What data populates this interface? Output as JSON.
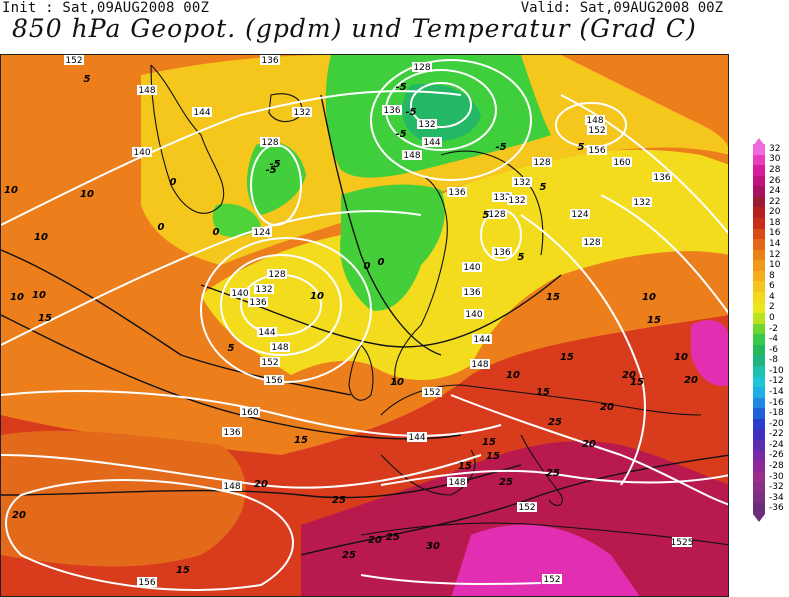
{
  "header": {
    "init": "Init : Sat,09AUG2008 00Z",
    "valid": "Valid: Sat,09AUG2008 00Z",
    "title": "850 hPa Geopot. (gpdm) und Temperatur (Grad C)"
  },
  "colors": {
    "very_hot": "#c2185b",
    "hot": "#d93b1f",
    "warm": "#ef7a1a",
    "mild": "#f6a321",
    "cool": "#f2e21e",
    "cold": "#3ccf3c",
    "land_line": "#111111",
    "geopotential_line": "#ffffff"
  },
  "legend": {
    "labels": [
      "32",
      "30",
      "28",
      "26",
      "24",
      "22",
      "20",
      "18",
      "16",
      "14",
      "12",
      "10",
      "8",
      "6",
      "4",
      "2",
      "0",
      "-2",
      "-4",
      "-6",
      "-8",
      "-10",
      "-12",
      "-14",
      "-16",
      "-18",
      "-20",
      "-22",
      "-24",
      "-26",
      "-28",
      "-30",
      "-32",
      "-34",
      "-36"
    ],
    "colors": [
      "#f06adf",
      "#e63ebd",
      "#d61b9c",
      "#c2127d",
      "#a8115f",
      "#9b1b30",
      "#b5211f",
      "#c92d1a",
      "#d94a17",
      "#e26718",
      "#ea8119",
      "#f0981b",
      "#f5ad1c",
      "#f7c41d",
      "#f4d81e",
      "#e9e81f",
      "#b9e21f",
      "#6fd530",
      "#38c94a",
      "#25b95b",
      "#1fb37f",
      "#1ec1ad",
      "#1ec5d7",
      "#20aee6",
      "#2088e2",
      "#2060d8",
      "#2a3ccc",
      "#3f2fbf",
      "#5c2db0",
      "#7a28a6",
      "#8f2896",
      "#9b2d8b",
      "#8a2f86",
      "#7a2f80",
      "#6b2c7a"
    ]
  },
  "geopotential_labels": [
    "152",
    "148",
    "144",
    "140",
    "136",
    "132",
    "128",
    "124",
    "128",
    "132",
    "136",
    "140",
    "144",
    "148",
    "152",
    "156",
    "160",
    "136",
    "128",
    "132",
    "136",
    "144",
    "148",
    "136",
    "132",
    "128",
    "132",
    "136",
    "140",
    "144",
    "148",
    "152",
    "148",
    "152",
    "156",
    "160",
    "136",
    "132",
    "128",
    "124",
    "128",
    "132",
    "136",
    "140",
    "144",
    "148",
    "152",
    "1525",
    "148",
    "152",
    "156"
  ],
  "temperature_labels": [
    "5",
    "-5",
    "-5",
    "-5",
    "-5",
    "0",
    "0",
    "0",
    "0",
    "10",
    "5",
    "10",
    "-5",
    "-5",
    "5",
    "5",
    "0",
    "5",
    "10",
    "10",
    "10",
    "10",
    "15",
    "15",
    "15",
    "10",
    "10",
    "15",
    "5",
    "10",
    "15",
    "10",
    "15",
    "15",
    "20",
    "20",
    "20",
    "25",
    "25",
    "15",
    "25",
    "20",
    "25",
    "30",
    "15",
    "20",
    "20",
    "15",
    "20",
    "25",
    "25",
    "15"
  ]
}
